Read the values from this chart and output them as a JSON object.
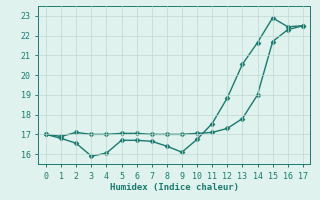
{
  "title": "",
  "xlabel": "Humidex (Indice chaleur)",
  "x_jagged": [
    0,
    1,
    2,
    3,
    4,
    5,
    6,
    7,
    8,
    9,
    10,
    11,
    12,
    13,
    14,
    15,
    16,
    17
  ],
  "y_jagged": [
    17.0,
    16.8,
    16.55,
    15.9,
    16.05,
    16.7,
    16.7,
    16.65,
    16.4,
    16.1,
    16.75,
    17.55,
    18.85,
    20.55,
    21.65,
    22.9,
    22.45,
    22.5
  ],
  "x_smooth": [
    0,
    1,
    2,
    3,
    4,
    5,
    6,
    7,
    8,
    9,
    10,
    11,
    12,
    13,
    14,
    15,
    16,
    17
  ],
  "y_smooth": [
    17.0,
    16.9,
    17.1,
    17.0,
    17.0,
    17.05,
    17.05,
    17.0,
    17.0,
    17.0,
    17.05,
    17.1,
    17.3,
    17.8,
    19.0,
    21.7,
    22.3,
    22.5
  ],
  "ylim": [
    15.5,
    23.5
  ],
  "xlim": [
    -0.5,
    17.5
  ],
  "yticks": [
    16,
    17,
    18,
    19,
    20,
    21,
    22,
    23
  ],
  "xticks": [
    0,
    1,
    2,
    3,
    4,
    5,
    6,
    7,
    8,
    9,
    10,
    11,
    12,
    13,
    14,
    15,
    16,
    17
  ],
  "line_color": "#1a7a6e",
  "marker": "D",
  "markersize": 2.5,
  "linewidth": 1.0,
  "bg_color": "#dff2ee",
  "grid_color": "#c0d8d3",
  "label_fontsize": 6.5,
  "tick_fontsize": 6.0
}
